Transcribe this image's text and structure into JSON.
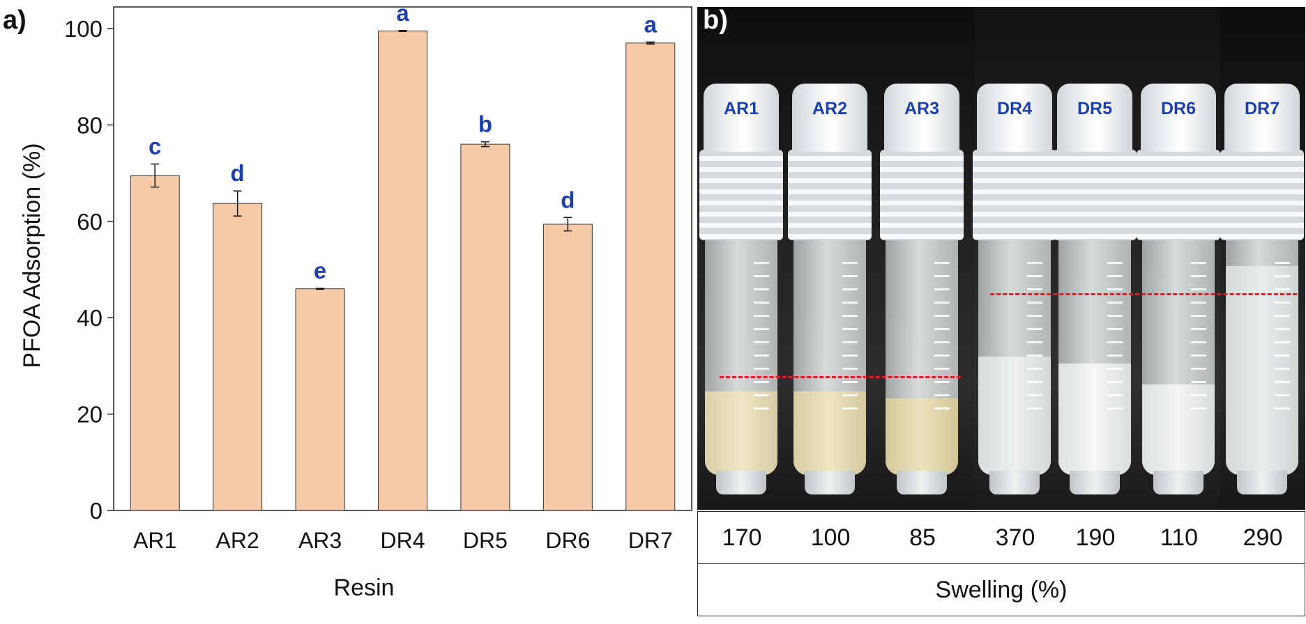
{
  "panels": {
    "a_label": "a)",
    "b_label": "b)"
  },
  "chart_data": {
    "type": "bar",
    "title": "",
    "xlabel": "Resin",
    "ylabel": "PFOA Adsorption (%)",
    "ylim": [
      0,
      100
    ],
    "yticks": [
      0,
      20,
      40,
      60,
      80,
      100
    ],
    "grid": false,
    "categories": [
      "AR1",
      "AR2",
      "AR3",
      "DR4",
      "DR5",
      "DR6",
      "DR7"
    ],
    "values": [
      69.5,
      63.7,
      46.0,
      99.5,
      76.0,
      59.4,
      97.0
    ],
    "errors": [
      2.4,
      2.6,
      0.1,
      0.1,
      0.5,
      1.4,
      0.2
    ],
    "significance_letters": [
      "c",
      "d",
      "e",
      "a",
      "b",
      "d",
      "a"
    ],
    "colors": {
      "bar_fill": "#f6c9a9",
      "bar_edge": "#333333",
      "letter": "#1e3fae"
    }
  },
  "photo": {
    "vial_labels": [
      "AR1",
      "AR2",
      "AR3",
      "DR4",
      "DR5",
      "DR6",
      "DR7"
    ],
    "colors": {
      "dash_line": "#e02020",
      "cap_label": "#1e3fae"
    }
  },
  "swelling": {
    "values": [
      "170",
      "100",
      "85",
      "370",
      "190",
      "110",
      "290"
    ],
    "caption": "Swelling (%)"
  }
}
